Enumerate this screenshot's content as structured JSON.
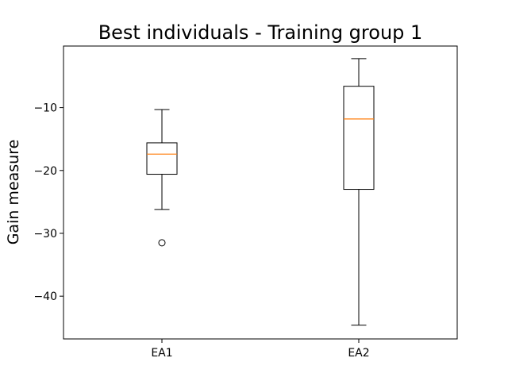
{
  "chart_data": {
    "type": "box",
    "title": "Best individuals - Training group 1",
    "xlabel": "",
    "ylabel": "Gain measure",
    "categories": [
      "EA1",
      "EA2"
    ],
    "boxes": [
      {
        "label": "EA1",
        "whisker_low": -26.2,
        "q1": -20.6,
        "median": -17.4,
        "q3": -15.6,
        "whisker_high": -10.3,
        "outliers": [
          -31.5
        ]
      },
      {
        "label": "EA2",
        "whisker_low": -44.6,
        "q1": -23.0,
        "median": -11.8,
        "q3": -6.6,
        "whisker_high": -2.2,
        "outliers": []
      }
    ],
    "ylim": [
      -46.8,
      -0.2
    ],
    "yticks": [
      -40,
      -30,
      -20,
      -10
    ],
    "grid": false,
    "colors": {
      "median": "#ff7f0e",
      "box": "#000000"
    }
  }
}
